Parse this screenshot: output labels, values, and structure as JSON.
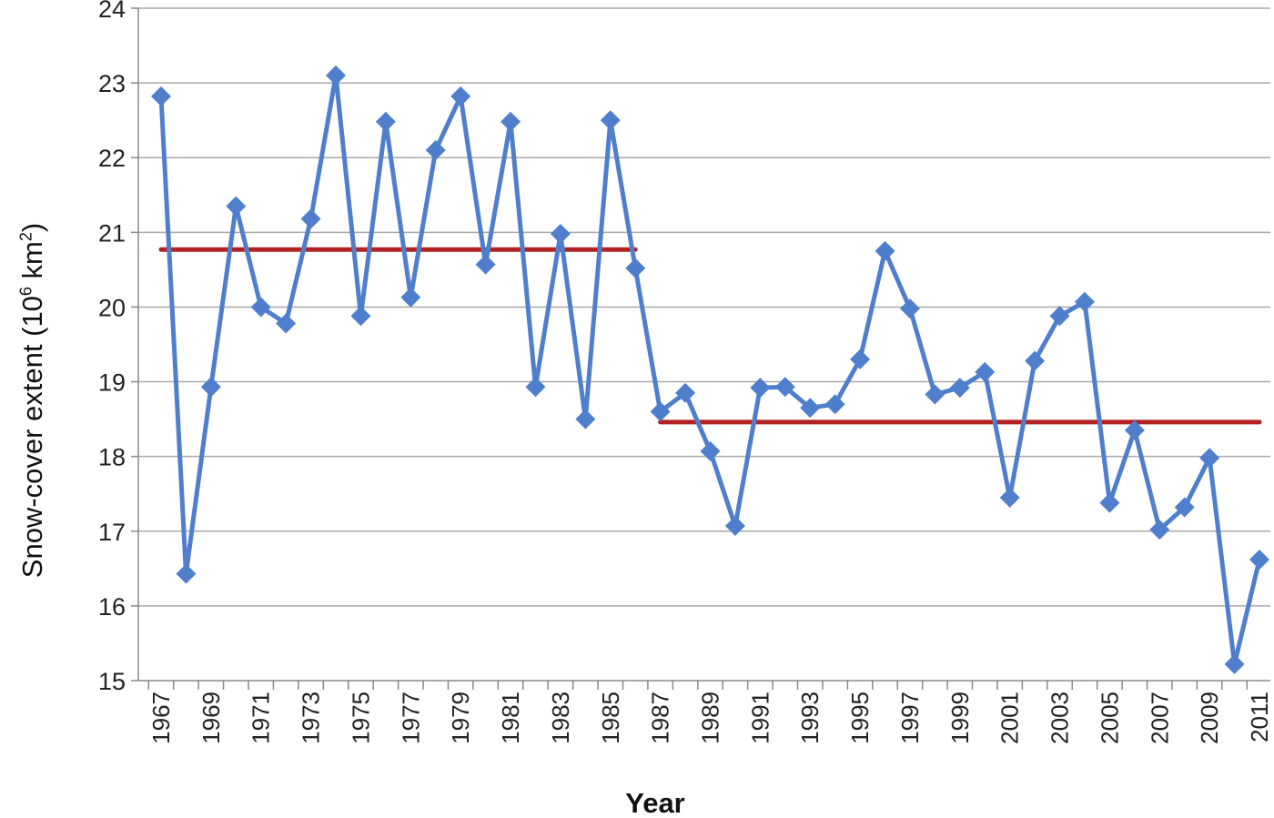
{
  "chart_data": {
    "type": "line",
    "xlabel": "Year",
    "ylabel": {
      "prefix": "Snow-cover extent (10",
      "exp": "6",
      "mid": " km",
      "exp2": "2",
      "suffix": ")"
    },
    "ylim": [
      15,
      24
    ],
    "yticks": [
      "15",
      "16",
      "17",
      "18",
      "19",
      "20",
      "21",
      "22",
      "23",
      "24"
    ],
    "xticks": [
      "1967",
      "1969",
      "1971",
      "1973",
      "1975",
      "1977",
      "1979",
      "1981",
      "1983",
      "1985",
      "1987",
      "1989",
      "1991",
      "1993",
      "1995",
      "1997",
      "1999",
      "2001",
      "2003",
      "2005",
      "2007",
      "2009",
      "2011"
    ],
    "grid": true,
    "series": [
      {
        "x": [
          1967,
          1968,
          1969,
          1970,
          1971,
          1972,
          1973,
          1974,
          1975,
          1976,
          1977,
          1978,
          1979,
          1980,
          1981,
          1982,
          1983,
          1984,
          1985,
          1986,
          1987,
          1988,
          1989,
          1990,
          1991,
          1992,
          1993,
          1994,
          1995,
          1996,
          1997,
          1998,
          1999,
          2000,
          2001,
          2002,
          2003,
          2004,
          2005,
          2006,
          2007,
          2008,
          2009,
          2010,
          2011
        ],
        "values": [
          22.82,
          16.43,
          18.93,
          21.35,
          20.0,
          19.78,
          21.18,
          23.1,
          19.88,
          22.48,
          20.13,
          22.1,
          22.82,
          20.57,
          22.48,
          18.93,
          20.98,
          18.5,
          22.5,
          20.52,
          18.6,
          18.85,
          18.07,
          17.07,
          18.92,
          18.93,
          18.65,
          18.7,
          19.3,
          20.75,
          19.98,
          18.83,
          18.92,
          19.13,
          17.45,
          19.28,
          19.88,
          20.07,
          17.38,
          18.35,
          17.02,
          17.32,
          17.98,
          15.22,
          16.62
        ],
        "color": "#4f7fcc"
      }
    ],
    "means": [
      {
        "x_start": 1967,
        "x_end": 1986,
        "value": 20.77,
        "color": "#b22222"
      },
      {
        "x_start": 1987,
        "x_end": 2011,
        "value": 18.46,
        "color": "#b22222"
      }
    ]
  }
}
